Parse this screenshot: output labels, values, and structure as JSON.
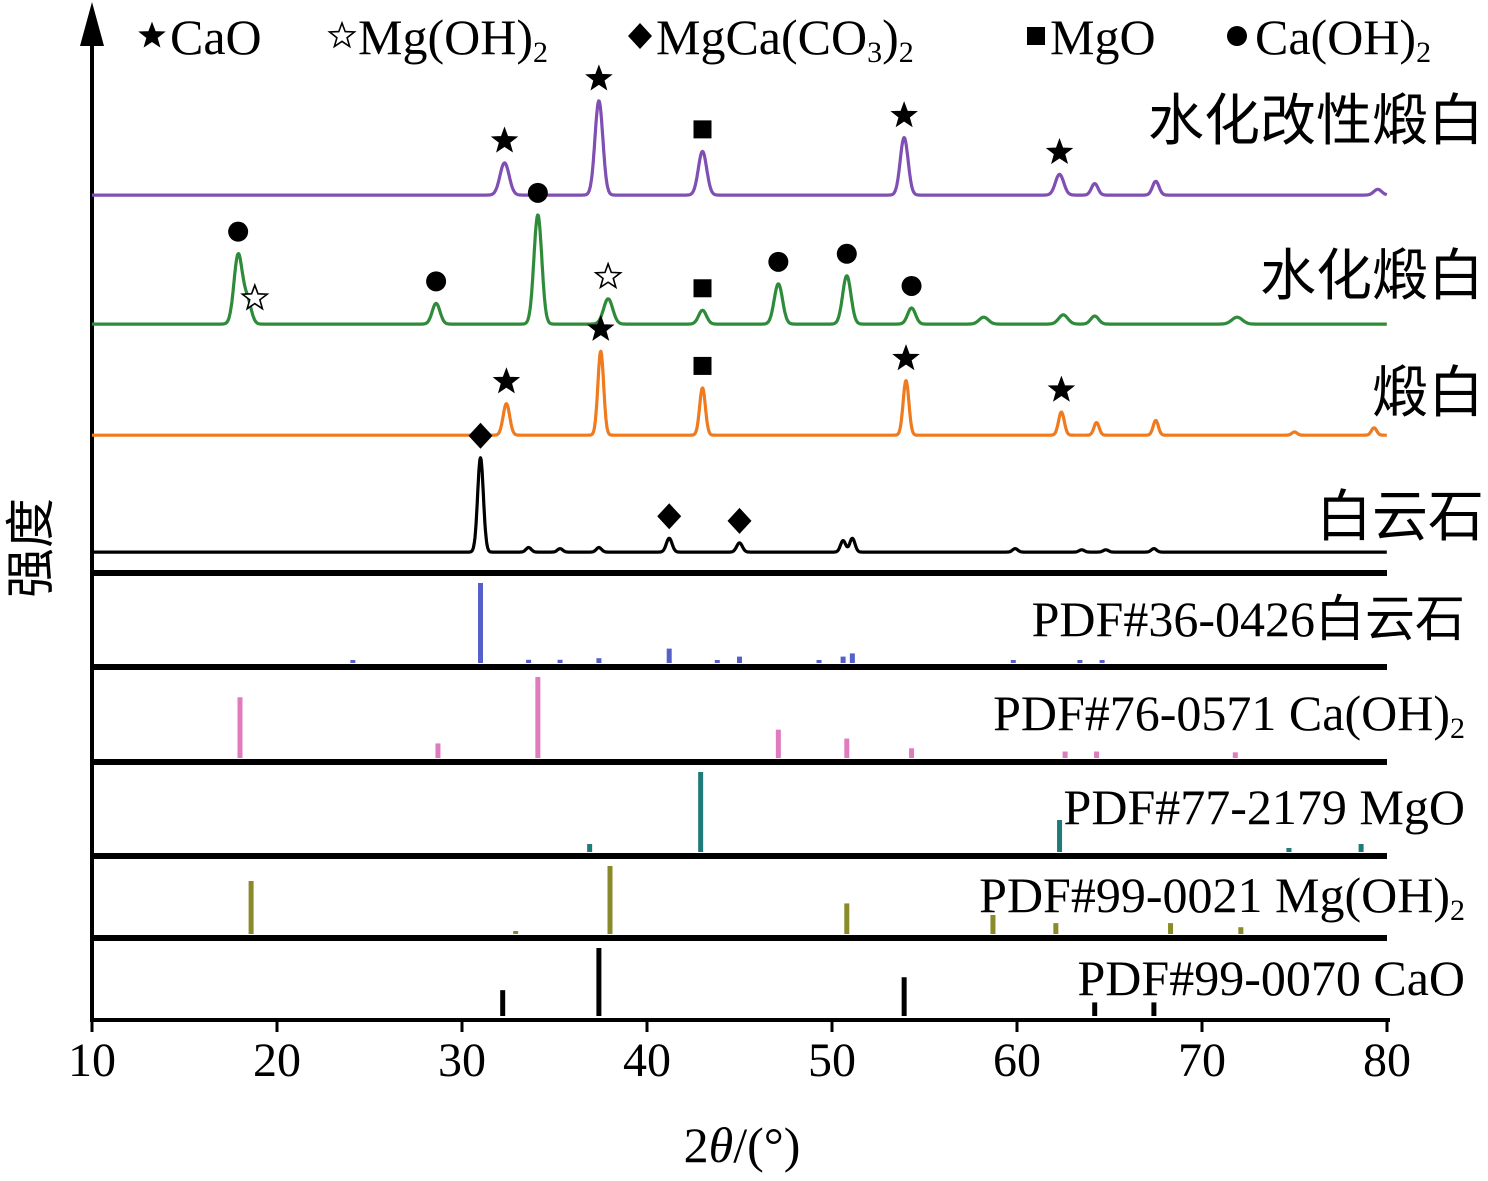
{
  "chart_data": {
    "type": "line",
    "x_axis": {
      "label": "2θ/(°)",
      "label_prefix": "2",
      "label_theta": "θ",
      "label_suffix": "/(°)",
      "range": [
        10,
        80
      ],
      "ticks": [
        10,
        20,
        30,
        40,
        50,
        60,
        70,
        80
      ]
    },
    "y_axis": {
      "label": "强度",
      "ticks_shown": false
    },
    "legend": {
      "placement": "top",
      "items": [
        {
          "marker": "filled-star",
          "label": "CaO",
          "sub": ""
        },
        {
          "marker": "open-star",
          "label": "Mg(OH)",
          "sub": "2",
          "after": ""
        },
        {
          "marker": "diamond",
          "label": "MgCa(CO",
          "sub": "3",
          "after": ")2"
        },
        {
          "marker": "square",
          "label": "MgO",
          "sub": ""
        },
        {
          "marker": "circle",
          "label": "Ca(OH)",
          "sub": "2",
          "after": ""
        }
      ]
    },
    "series": [
      {
        "name": "水化改性煅白",
        "color": "#7f4fb3",
        "baseline": 0.8,
        "peaks": [
          {
            "x": 32.3,
            "h": 28,
            "w": 0.35
          },
          {
            "x": 37.4,
            "h": 82,
            "w": 0.3
          },
          {
            "x": 43.0,
            "h": 38,
            "w": 0.32
          },
          {
            "x": 53.9,
            "h": 50,
            "w": 0.3
          },
          {
            "x": 62.3,
            "h": 18,
            "w": 0.32
          },
          {
            "x": 64.2,
            "h": 10,
            "w": 0.25
          },
          {
            "x": 67.5,
            "h": 12,
            "w": 0.25
          },
          {
            "x": 79.5,
            "h": 5,
            "w": 0.3
          }
        ],
        "markers": [
          {
            "x": 32.3,
            "type": "filled-star"
          },
          {
            "x": 37.4,
            "type": "filled-star"
          },
          {
            "x": 43.0,
            "type": "square"
          },
          {
            "x": 53.9,
            "type": "filled-star"
          },
          {
            "x": 62.3,
            "type": "filled-star"
          }
        ]
      },
      {
        "name": "水化煅白",
        "color": "#2e8b3a",
        "baseline": 0.8,
        "peaks": [
          {
            "x": 17.9,
            "h": 60,
            "w": 0.32
          },
          {
            "x": 18.4,
            "h": 20,
            "w": 0.3
          },
          {
            "x": 28.6,
            "h": 18,
            "w": 0.3
          },
          {
            "x": 34.1,
            "h": 95,
            "w": 0.3
          },
          {
            "x": 37.9,
            "h": 22,
            "w": 0.35
          },
          {
            "x": 43.0,
            "h": 12,
            "w": 0.3
          },
          {
            "x": 47.1,
            "h": 35,
            "w": 0.32
          },
          {
            "x": 50.8,
            "h": 42,
            "w": 0.32
          },
          {
            "x": 54.3,
            "h": 14,
            "w": 0.3
          },
          {
            "x": 58.2,
            "h": 6,
            "w": 0.35
          },
          {
            "x": 62.5,
            "h": 8,
            "w": 0.35
          },
          {
            "x": 64.2,
            "h": 7,
            "w": 0.3
          },
          {
            "x": 71.9,
            "h": 6,
            "w": 0.4
          }
        ],
        "markers": [
          {
            "x": 17.9,
            "type": "circle"
          },
          {
            "x": 18.8,
            "type": "open-star"
          },
          {
            "x": 28.6,
            "type": "circle"
          },
          {
            "x": 34.1,
            "type": "circle"
          },
          {
            "x": 37.9,
            "type": "open-star"
          },
          {
            "x": 43.0,
            "type": "square"
          },
          {
            "x": 47.1,
            "type": "circle"
          },
          {
            "x": 50.8,
            "type": "circle"
          },
          {
            "x": 54.3,
            "type": "circle"
          }
        ]
      },
      {
        "name": "煅白",
        "color": "#f07a1e",
        "baseline": 0.8,
        "peaks": [
          {
            "x": 32.4,
            "h": 30,
            "w": 0.25
          },
          {
            "x": 37.5,
            "h": 80,
            "w": 0.22
          },
          {
            "x": 43.0,
            "h": 45,
            "w": 0.22
          },
          {
            "x": 54.0,
            "h": 52,
            "w": 0.22
          },
          {
            "x": 62.4,
            "h": 22,
            "w": 0.22
          },
          {
            "x": 64.3,
            "h": 12,
            "w": 0.2
          },
          {
            "x": 67.5,
            "h": 14,
            "w": 0.2
          },
          {
            "x": 75.0,
            "h": 3,
            "w": 0.2
          },
          {
            "x": 79.3,
            "h": 7,
            "w": 0.2
          }
        ],
        "markers": [
          {
            "x": 32.4,
            "type": "filled-star"
          },
          {
            "x": 37.5,
            "type": "filled-star"
          },
          {
            "x": 43.0,
            "type": "square"
          },
          {
            "x": 54.0,
            "type": "filled-star"
          },
          {
            "x": 62.4,
            "type": "filled-star"
          }
        ]
      },
      {
        "name": "白云石",
        "color": "#000000",
        "baseline": 0.8,
        "peaks": [
          {
            "x": 31.0,
            "h": 82,
            "w": 0.22
          },
          {
            "x": 33.6,
            "h": 4,
            "w": 0.2
          },
          {
            "x": 35.3,
            "h": 3,
            "w": 0.2
          },
          {
            "x": 37.4,
            "h": 4,
            "w": 0.2
          },
          {
            "x": 41.2,
            "h": 12,
            "w": 0.22
          },
          {
            "x": 45.0,
            "h": 8,
            "w": 0.22
          },
          {
            "x": 50.6,
            "h": 10,
            "w": 0.2
          },
          {
            "x": 51.1,
            "h": 12,
            "w": 0.2
          },
          {
            "x": 59.9,
            "h": 3,
            "w": 0.2
          },
          {
            "x": 63.5,
            "h": 2,
            "w": 0.2
          },
          {
            "x": 64.8,
            "h": 2,
            "w": 0.2
          },
          {
            "x": 67.4,
            "h": 3,
            "w": 0.2
          }
        ],
        "markers": [
          {
            "x": 31.0,
            "type": "diamond"
          },
          {
            "x": 41.2,
            "type": "diamond"
          },
          {
            "x": 45.0,
            "type": "diamond"
          }
        ]
      }
    ],
    "reference_patterns": [
      {
        "label": "PDF#36-0426白云石",
        "color": "#5560c8",
        "sticks": [
          {
            "x": 24.1,
            "h": 3
          },
          {
            "x": 31.0,
            "h": 100
          },
          {
            "x": 33.6,
            "h": 4
          },
          {
            "x": 35.3,
            "h": 4
          },
          {
            "x": 37.4,
            "h": 6
          },
          {
            "x": 41.2,
            "h": 18
          },
          {
            "x": 43.8,
            "h": 3
          },
          {
            "x": 45.0,
            "h": 8
          },
          {
            "x": 49.3,
            "h": 3
          },
          {
            "x": 50.6,
            "h": 8
          },
          {
            "x": 51.1,
            "h": 12
          },
          {
            "x": 59.8,
            "h": 3
          },
          {
            "x": 63.4,
            "h": 2
          },
          {
            "x": 64.6,
            "h": 2
          }
        ]
      },
      {
        "label": "PDF#76-0571 Ca(OH)",
        "label_sub": "2",
        "color": "#e07bbe",
        "sticks": [
          {
            "x": 18.0,
            "h": 75
          },
          {
            "x": 28.7,
            "h": 18
          },
          {
            "x": 34.1,
            "h": 100
          },
          {
            "x": 47.1,
            "h": 35
          },
          {
            "x": 50.8,
            "h": 24
          },
          {
            "x": 54.3,
            "h": 12
          },
          {
            "x": 62.6,
            "h": 8
          },
          {
            "x": 64.3,
            "h": 8
          },
          {
            "x": 71.8,
            "h": 7
          }
        ]
      },
      {
        "label": "PDF#77-2179 MgO",
        "label_sub": "",
        "color": "#1f7a7a",
        "sticks": [
          {
            "x": 36.9,
            "h": 10
          },
          {
            "x": 42.9,
            "h": 100
          },
          {
            "x": 62.3,
            "h": 40
          },
          {
            "x": 74.7,
            "h": 5
          },
          {
            "x": 78.6,
            "h": 10
          }
        ]
      },
      {
        "label": "PDF#99-0021 Mg(OH)",
        "label_sub": "2",
        "color": "#8a8a2a",
        "sticks": [
          {
            "x": 18.6,
            "h": 78
          },
          {
            "x": 32.9,
            "h": 4
          },
          {
            "x": 38.0,
            "h": 100
          },
          {
            "x": 50.8,
            "h": 45
          },
          {
            "x": 58.7,
            "h": 28
          },
          {
            "x": 62.1,
            "h": 16
          },
          {
            "x": 68.3,
            "h": 16
          },
          {
            "x": 72.1,
            "h": 10
          }
        ]
      },
      {
        "label": "PDF#99-0070 CaO",
        "label_sub": "",
        "color": "#000000",
        "sticks": [
          {
            "x": 32.2,
            "h": 38
          },
          {
            "x": 37.4,
            "h": 100
          },
          {
            "x": 53.9,
            "h": 57
          },
          {
            "x": 64.2,
            "h": 20
          },
          {
            "x": 67.4,
            "h": 20
          }
        ]
      }
    ]
  }
}
